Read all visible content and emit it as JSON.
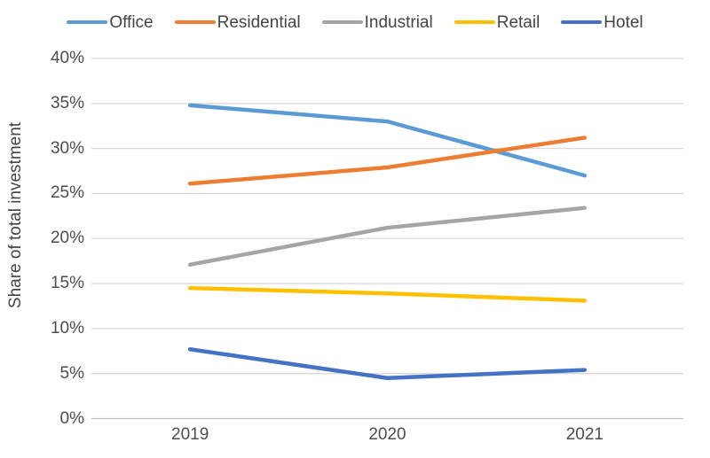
{
  "chart_data": {
    "type": "line",
    "categories": [
      "2019",
      "2020",
      "2021"
    ],
    "series": [
      {
        "name": "Office",
        "color": "#5B9BD5",
        "values": [
          34.8,
          33.0,
          27.0
        ]
      },
      {
        "name": "Residential",
        "color": "#ED7D31",
        "values": [
          26.1,
          27.9,
          31.2
        ]
      },
      {
        "name": "Industrial",
        "color": "#A5A5A5",
        "values": [
          17.1,
          21.2,
          23.4
        ]
      },
      {
        "name": "Retail",
        "color": "#FFC000",
        "values": [
          14.5,
          13.9,
          13.1
        ]
      },
      {
        "name": "Hotel",
        "color": "#4472C4",
        "values": [
          7.7,
          4.5,
          5.4
        ]
      }
    ],
    "title": "",
    "xlabel": "",
    "ylabel": "Share of total investment",
    "ylim": [
      0,
      40
    ],
    "ytick_step": 5,
    "ytick_suffix": "%",
    "grid": true,
    "legend_position": "top",
    "colors": {
      "gridline": "#D9D9D9",
      "axis_line": "#BFBFBF",
      "tick_text": "#4D4D4D",
      "background": "#FFFFFF"
    }
  }
}
